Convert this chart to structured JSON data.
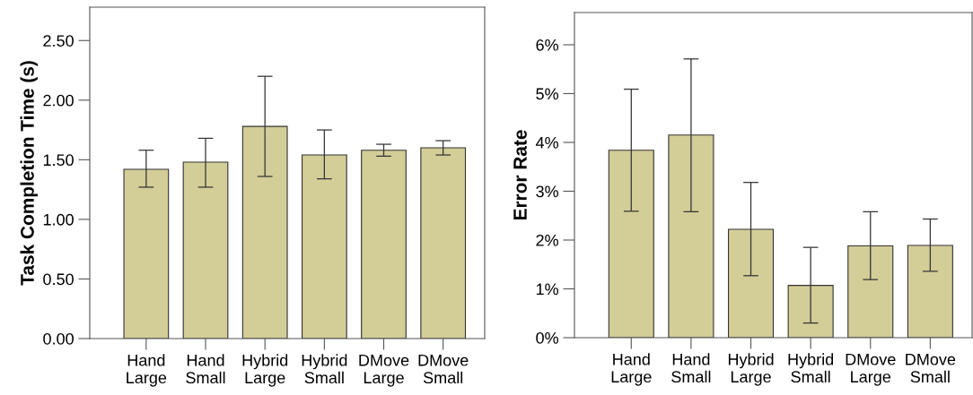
{
  "chart_data": [
    {
      "type": "bar",
      "ylabel": "Task Completion Time (s)",
      "categories": [
        "Hand\nLarge",
        "Hand\nSmall",
        "Hybrid\nLarge",
        "Hybrid\nSmall",
        "DMove\nLarge",
        "DMove\nSmall"
      ],
      "values": [
        1.42,
        1.48,
        1.78,
        1.54,
        1.58,
        1.6
      ],
      "errors": [
        [
          1.27,
          1.58
        ],
        [
          1.27,
          1.68
        ],
        [
          1.36,
          2.2
        ],
        [
          1.34,
          1.75
        ],
        [
          1.53,
          1.63
        ],
        [
          1.54,
          1.66
        ]
      ],
      "color": "#d3cd98",
      "ylim": [
        0,
        2.78
      ],
      "yticks": [
        {
          "value": 0,
          "label": "0.00"
        },
        {
          "value": 0.5,
          "label": "0.50"
        },
        {
          "value": 1,
          "label": "1.00"
        },
        {
          "value": 1.5,
          "label": "1.50"
        },
        {
          "value": 2,
          "label": "2.00"
        },
        {
          "value": 2.5,
          "label": "2.50"
        }
      ],
      "grid": false,
      "legend": false
    },
    {
      "type": "bar",
      "ylabel": "Error Rate",
      "categories": [
        "Hand\nLarge",
        "Hand\nSmall",
        "Hybrid\nLarge",
        "Hybrid\nSmall",
        "DMove\nLarge",
        "DMove\nSmall"
      ],
      "values": [
        3.84,
        4.15,
        2.22,
        1.07,
        1.88,
        1.89
      ],
      "errors": [
        [
          2.59,
          5.09
        ],
        [
          2.58,
          5.71
        ],
        [
          1.27,
          3.18
        ],
        [
          0.3,
          1.85
        ],
        [
          1.19,
          2.58
        ],
        [
          1.36,
          2.43
        ]
      ],
      "color": "#d3cd98",
      "ylim": [
        0,
        6.66
      ],
      "yticks": [
        {
          "value": 0,
          "label": "0%"
        },
        {
          "value": 1,
          "label": "1%"
        },
        {
          "value": 2,
          "label": "2%"
        },
        {
          "value": 3,
          "label": "3%"
        },
        {
          "value": 4,
          "label": "4%"
        },
        {
          "value": 5,
          "label": "5%"
        },
        {
          "value": 6,
          "label": "6%"
        }
      ],
      "grid": false,
      "legend": false
    }
  ]
}
